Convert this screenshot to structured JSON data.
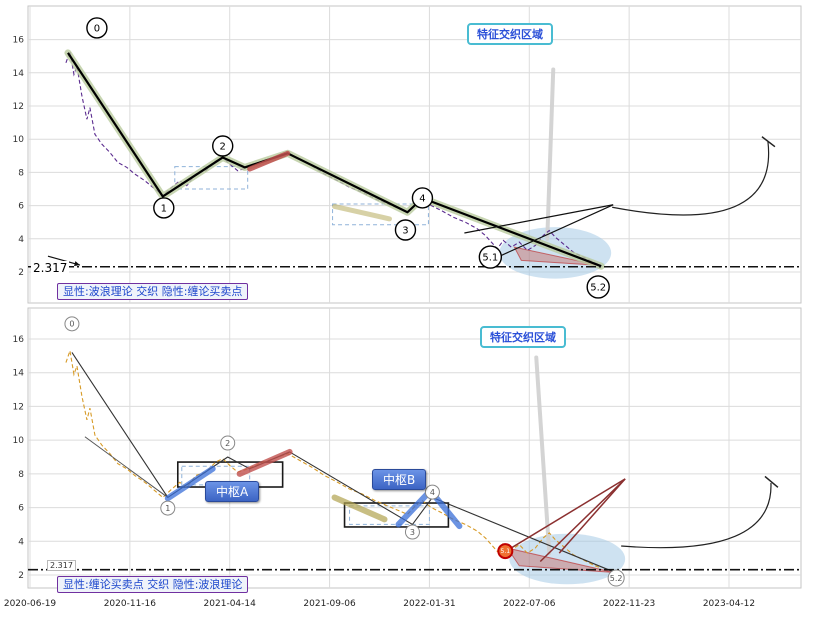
{
  "chart_data": {
    "type": "line",
    "x_tick_labels": [
      "2020-06-19",
      "2020-11-16",
      "2021-04-14",
      "2021-09-06",
      "2022-01-31",
      "2022-07-06",
      "2022-11-23",
      "2023-04-12"
    ],
    "y_ticks": [
      2,
      4,
      6,
      8,
      10,
      12,
      14,
      16
    ],
    "reference_value": 2.317,
    "grid": true,
    "panels": [
      {
        "id": "wave-explicit",
        "caption": "显性:波浪理论 交织 隐性:缠论买卖点",
        "feature_label": "特征交织区域",
        "ref_label": "2.317",
        "price_color": "#5b2c8f",
        "wave_color": "#000000",
        "wave_glow": "#b9cb9e",
        "wave_width": 2.2,
        "ellipse_color": "#9dc6e4",
        "wave_points": [
          [
            0.38,
            15.2
          ],
          [
            1.33,
            6.55
          ],
          [
            1.93,
            8.9
          ],
          [
            2.15,
            8.3
          ],
          [
            2.58,
            9.15
          ],
          [
            3.78,
            5.6
          ],
          [
            3.93,
            6.45
          ],
          [
            5.72,
            2.35
          ]
        ],
        "price_points": [
          [
            0.36,
            14.6
          ],
          [
            0.4,
            15.3
          ],
          [
            0.44,
            13.9
          ],
          [
            0.47,
            14.4
          ],
          [
            0.52,
            12.6
          ],
          [
            0.57,
            11.2
          ],
          [
            0.6,
            11.9
          ],
          [
            0.65,
            10.3
          ],
          [
            0.72,
            9.7
          ],
          [
            0.8,
            9.2
          ],
          [
            0.88,
            8.6
          ],
          [
            0.97,
            8.3
          ],
          [
            1.05,
            7.9
          ],
          [
            1.15,
            7.5
          ],
          [
            1.25,
            7.0
          ],
          [
            1.33,
            6.6
          ],
          [
            1.42,
            7.1
          ],
          [
            1.5,
            7.5
          ],
          [
            1.57,
            7.2
          ],
          [
            1.66,
            7.9
          ],
          [
            1.76,
            8.1
          ],
          [
            1.86,
            8.7
          ],
          [
            1.93,
            8.9
          ],
          [
            2.0,
            8.5
          ],
          [
            2.08,
            8.1
          ],
          [
            2.18,
            8.3
          ],
          [
            2.3,
            8.6
          ],
          [
            2.44,
            8.9
          ],
          [
            2.58,
            9.2
          ],
          [
            2.7,
            8.8
          ],
          [
            2.82,
            8.4
          ],
          [
            2.95,
            7.9
          ],
          [
            3.08,
            7.5
          ],
          [
            3.2,
            7.1
          ],
          [
            3.33,
            6.8
          ],
          [
            3.46,
            6.4
          ],
          [
            3.58,
            6.1
          ],
          [
            3.7,
            5.8
          ],
          [
            3.78,
            5.6
          ],
          [
            3.86,
            6.1
          ],
          [
            3.93,
            6.4
          ],
          [
            4.02,
            6.0
          ],
          [
            4.12,
            5.7
          ],
          [
            4.24,
            5.3
          ],
          [
            4.36,
            5.0
          ],
          [
            4.48,
            4.6
          ],
          [
            4.56,
            4.2
          ],
          [
            4.62,
            3.8
          ],
          [
            4.68,
            3.4
          ],
          [
            4.74,
            3.9
          ],
          [
            4.82,
            3.5
          ],
          [
            4.9,
            3.8
          ],
          [
            4.98,
            3.3
          ],
          [
            5.06,
            3.6
          ],
          [
            5.14,
            4.2
          ],
          [
            5.2,
            4.5
          ],
          [
            5.26,
            4.1
          ],
          [
            5.34,
            3.7
          ],
          [
            5.44,
            3.2
          ],
          [
            5.54,
            2.9
          ],
          [
            5.64,
            2.6
          ],
          [
            5.72,
            2.4
          ]
        ],
        "marker_style": {
          "stroke": "#000000",
          "width": 1.4,
          "font": 10,
          "fill": "#ffffff",
          "text_color": "#000000"
        },
        "markers": [
          {
            "label": "0",
            "t": 0.67,
            "v": 16.7,
            "r": 10
          },
          {
            "label": "1",
            "t": 1.34,
            "v": 5.86,
            "r": 10
          },
          {
            "label": "2",
            "t": 1.93,
            "v": 9.59,
            "r": 10
          },
          {
            "label": "3",
            "t": 3.76,
            "v": 4.53,
            "r": 10
          },
          {
            "label": "4",
            "t": 3.93,
            "v": 6.46,
            "r": 10
          },
          {
            "label": "5.1",
            "t": 4.61,
            "v": 2.9,
            "r": 11
          },
          {
            "label": "5.2",
            "t": 5.69,
            "v": 1.1,
            "r": 11
          }
        ],
        "boxes": [
          {
            "t1": 1.45,
            "v1": 7.0,
            "t2": 2.18,
            "v2": 8.35,
            "style": "dashed"
          },
          {
            "t1": 3.03,
            "v1": 4.85,
            "t2": 3.99,
            "v2": 6.1,
            "style": "dashed"
          }
        ],
        "strokes": [
          {
            "color": "#c0504d",
            "width": 5,
            "opacity": 0.85,
            "points": [
              [
                2.2,
                8.2
              ],
              [
                2.58,
                9.15
              ]
            ]
          },
          {
            "color": "#b0a34e",
            "width": 5,
            "opacity": 0.5,
            "points": [
              [
                3.05,
                5.95
              ],
              [
                3.6,
                5.2
              ]
            ]
          }
        ],
        "lines": [
          {
            "color": "#111111",
            "width": 1.2,
            "points": [
              [
                5.84,
                6.05
              ],
              [
                4.35,
                4.35
              ]
            ]
          },
          {
            "color": "#111111",
            "width": 1.2,
            "points": [
              [
                5.84,
                6.05
              ],
              [
                4.72,
                3.0
              ]
            ]
          },
          {
            "color": "#111111",
            "width": 1.2,
            "arrow": true,
            "points": [
              [
                0.18,
                2.95
              ],
              [
                0.5,
                2.42
              ]
            ]
          }
        ],
        "arc": {
          "start": [
            5.83,
            5.9
          ],
          "ctrl": [
            7.5,
            4.0
          ],
          "end": [
            7.39,
            9.85
          ],
          "tick": [
            [
              7.33,
              10.15
            ],
            [
              7.46,
              9.55
            ]
          ]
        },
        "ellipse": {
          "cx": 5.26,
          "cv": 3.15,
          "rt": 0.56,
          "rv": 1.55
        },
        "red_wedge": [
          [
            4.85,
            3.5
          ],
          [
            5.7,
            2.4
          ],
          [
            4.92,
            2.7
          ]
        ],
        "leader": [
          [
            5.24,
            14.2
          ],
          [
            5.18,
            4.0
          ]
        ]
      },
      {
        "id": "chan-explicit",
        "caption": "显性:缠论买卖点 交织 隐性:波浪理论",
        "feature_label": "特征交织区域",
        "ref_label": "2.317",
        "pivot_labels": [
          "中枢A",
          "中枢B"
        ],
        "price_color": "#d79b28",
        "wave_color": "#333333",
        "wave_glow": null,
        "wave_width": 1.1,
        "ellipse_color": "#9dc6e4",
        "wave_points": [
          [
            0.42,
            15.2
          ],
          [
            1.38,
            6.6
          ],
          [
            1.98,
            9.0
          ],
          [
            2.2,
            8.3
          ],
          [
            2.6,
            9.3
          ],
          [
            3.83,
            5.0
          ],
          [
            4.03,
            6.6
          ],
          [
            5.88,
            2.1
          ]
        ],
        "wave2_points": [
          [
            0.55,
            10.2
          ],
          [
            1.38,
            6.6
          ]
        ],
        "price_points": [
          [
            0.36,
            14.6
          ],
          [
            0.4,
            15.3
          ],
          [
            0.44,
            13.9
          ],
          [
            0.47,
            14.4
          ],
          [
            0.52,
            12.6
          ],
          [
            0.57,
            11.2
          ],
          [
            0.6,
            11.9
          ],
          [
            0.65,
            10.3
          ],
          [
            0.72,
            9.7
          ],
          [
            0.8,
            9.2
          ],
          [
            0.88,
            8.6
          ],
          [
            0.97,
            8.3
          ],
          [
            1.05,
            7.9
          ],
          [
            1.15,
            7.5
          ],
          [
            1.25,
            7.0
          ],
          [
            1.33,
            6.6
          ],
          [
            1.42,
            7.1
          ],
          [
            1.5,
            7.5
          ],
          [
            1.57,
            7.2
          ],
          [
            1.66,
            7.9
          ],
          [
            1.76,
            8.1
          ],
          [
            1.86,
            8.7
          ],
          [
            1.93,
            8.9
          ],
          [
            2.0,
            8.5
          ],
          [
            2.08,
            8.1
          ],
          [
            2.18,
            8.3
          ],
          [
            2.3,
            8.6
          ],
          [
            2.44,
            8.9
          ],
          [
            2.58,
            9.2
          ],
          [
            2.7,
            8.8
          ],
          [
            2.82,
            8.4
          ],
          [
            2.95,
            7.9
          ],
          [
            3.08,
            7.5
          ],
          [
            3.2,
            7.1
          ],
          [
            3.33,
            6.8
          ],
          [
            3.46,
            6.4
          ],
          [
            3.58,
            6.1
          ],
          [
            3.7,
            5.8
          ],
          [
            3.78,
            5.6
          ],
          [
            3.86,
            6.1
          ],
          [
            3.93,
            6.4
          ],
          [
            4.02,
            6.0
          ],
          [
            4.12,
            5.7
          ],
          [
            4.24,
            5.3
          ],
          [
            4.36,
            5.0
          ],
          [
            4.48,
            4.6
          ],
          [
            4.56,
            4.2
          ],
          [
            4.62,
            3.8
          ],
          [
            4.68,
            3.4
          ],
          [
            4.74,
            3.9
          ],
          [
            4.82,
            3.5
          ],
          [
            4.9,
            3.8
          ],
          [
            4.98,
            3.3
          ],
          [
            5.06,
            3.6
          ],
          [
            5.14,
            4.2
          ],
          [
            5.2,
            4.5
          ],
          [
            5.26,
            4.1
          ],
          [
            5.34,
            3.7
          ],
          [
            5.44,
            3.2
          ],
          [
            5.54,
            2.9
          ],
          [
            5.64,
            2.6
          ],
          [
            5.72,
            2.4
          ]
        ],
        "marker_style": {
          "stroke": "#888888",
          "width": 1,
          "font": 8,
          "fill": "#ffffff",
          "text_color": "#555555"
        },
        "markers": [
          {
            "label": "0",
            "t": 0.42,
            "v": 16.9,
            "r": 7
          },
          {
            "label": "1",
            "t": 1.38,
            "v": 5.97,
            "r": 7
          },
          {
            "label": "2",
            "t": 1.98,
            "v": 9.83,
            "r": 7
          },
          {
            "label": "3",
            "t": 3.83,
            "v": 4.55,
            "r": 7
          },
          {
            "label": "4",
            "t": 4.03,
            "v": 6.92,
            "r": 7
          },
          {
            "label": "5.2",
            "t": 5.87,
            "v": 1.82,
            "r": 8
          },
          {
            "label": "5.1",
            "t": 4.76,
            "v": 3.42,
            "r": 7,
            "fill": "#f07030",
            "stroke": "#c00000",
            "text_color": "#ffffff",
            "font": 6,
            "width": 2
          }
        ],
        "boxes": [
          {
            "t1": 1.52,
            "v1": 7.35,
            "t2": 2.2,
            "v2": 8.45,
            "style": "dashed"
          },
          {
            "t1": 3.2,
            "v1": 5.0,
            "t2": 4.0,
            "v2": 6.1,
            "style": "dashed"
          },
          {
            "t1": 1.48,
            "v1": 7.22,
            "t2": 2.53,
            "v2": 8.7,
            "style": "solid"
          },
          {
            "t1": 3.15,
            "v1": 4.85,
            "t2": 4.19,
            "v2": 6.27,
            "style": "solid"
          }
        ],
        "strokes": [
          {
            "color": "#3a6fd8",
            "width": 6,
            "opacity": 0.75,
            "points": [
              [
                1.38,
                6.55
              ],
              [
                1.83,
                8.3
              ]
            ]
          },
          {
            "color": "#c0504d",
            "width": 6,
            "opacity": 0.8,
            "points": [
              [
                2.1,
                8.0
              ],
              [
                2.6,
                9.3
              ]
            ]
          },
          {
            "color": "#b0a34e",
            "width": 6,
            "opacity": 0.7,
            "points": [
              [
                3.05,
                6.6
              ],
              [
                3.55,
                5.3
              ]
            ]
          },
          {
            "color": "#3a6fd8",
            "width": 6,
            "opacity": 0.75,
            "points": [
              [
                3.69,
                5.0
              ],
              [
                4.01,
                7.0
              ],
              [
                4.3,
                4.9
              ]
            ]
          }
        ],
        "lines": [
          {
            "color": "#8b3030",
            "width": 1.5,
            "points": [
              [
                5.96,
                7.7
              ],
              [
                4.79,
                3.5
              ]
            ]
          },
          {
            "color": "#8b3030",
            "width": 1.5,
            "points": [
              [
                5.96,
                7.7
              ],
              [
                5.11,
                2.8
              ]
            ]
          },
          {
            "color": "#8b3030",
            "width": 1.5,
            "points": [
              [
                5.96,
                7.7
              ],
              [
                5.3,
                3.3
              ]
            ]
          }
        ],
        "arc": {
          "start": [
            5.92,
            3.72
          ],
          "ctrl": [
            7.45,
            3.0
          ],
          "end": [
            7.42,
            7.46
          ],
          "tick": [
            [
              7.36,
              7.85
            ],
            [
              7.49,
              7.2
            ]
          ]
        },
        "ellipse": {
          "cx": 5.38,
          "cv": 2.95,
          "rt": 0.58,
          "rv": 1.5
        },
        "red_wedge": [
          [
            4.78,
            3.6
          ],
          [
            5.85,
            2.15
          ],
          [
            4.9,
            2.55
          ]
        ],
        "leader": [
          [
            5.07,
            14.9
          ],
          [
            5.2,
            3.3
          ]
        ]
      }
    ]
  }
}
